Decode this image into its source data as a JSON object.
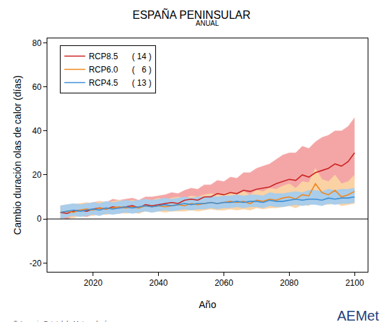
{
  "chart_data": {
    "type": "line",
    "title": "ESPAÑA PENINSULAR",
    "subtitle": "ANUAL",
    "x_label": "Año",
    "y_label": "Cambio duración olas de calor (días)",
    "source": "© Agencia Estatal de Meteorología",
    "logo": {
      "text": "AEMet",
      "subtitle": "Agencia Estatal de Meteorología"
    },
    "xlim": [
      2006,
      2104
    ],
    "ylim": [
      -24,
      82
    ],
    "xticks": [
      2020,
      2040,
      2060,
      2080,
      2100
    ],
    "yticks": [
      -20,
      0,
      20,
      40,
      60,
      80
    ],
    "hline": 0,
    "grid": false,
    "legend": "upper left",
    "x": [
      2010,
      2012,
      2014,
      2016,
      2018,
      2020,
      2022,
      2024,
      2026,
      2028,
      2030,
      2032,
      2034,
      2036,
      2038,
      2040,
      2042,
      2044,
      2046,
      2048,
      2050,
      2052,
      2054,
      2056,
      2058,
      2060,
      2062,
      2064,
      2066,
      2068,
      2070,
      2072,
      2074,
      2076,
      2078,
      2080,
      2082,
      2084,
      2086,
      2088,
      2090,
      2092,
      2094,
      2096,
      2098,
      2100
    ],
    "series": [
      {
        "name": "RCP8.5",
        "models_label": "( 14 )",
        "color": "#cc2222",
        "band_color": "#f4a6a6",
        "values": [
          3,
          2.5,
          3.5,
          4,
          3.5,
          4.5,
          5,
          4.5,
          5.5,
          5,
          5.5,
          6,
          5,
          6.5,
          6,
          6.5,
          7,
          7.5,
          7,
          8.5,
          9,
          8.5,
          10,
          10,
          11.5,
          11,
          12,
          11.5,
          13,
          12.5,
          13.5,
          14,
          14.5,
          16,
          17,
          18,
          17.5,
          20,
          19,
          21,
          22,
          23,
          25,
          24,
          26,
          30
        ],
        "lower": [
          0.5,
          0,
          1,
          1.5,
          1,
          2,
          2.5,
          2,
          3,
          2.5,
          3,
          3.5,
          2.5,
          4,
          3.5,
          4,
          4.5,
          5,
          4.5,
          5.5,
          6,
          5.5,
          6.5,
          6.5,
          7,
          7,
          7.5,
          7,
          8,
          7.5,
          8,
          8.5,
          9,
          10,
          10.5,
          11,
          10.5,
          12,
          11.5,
          13,
          13.5,
          14,
          15,
          15,
          16,
          18
        ],
        "upper": [
          6,
          5.5,
          6.5,
          7,
          6.5,
          7.5,
          8,
          7.5,
          9,
          8.5,
          9,
          9.5,
          8.5,
          10,
          10,
          10.5,
          11,
          12,
          11.5,
          13,
          14,
          13.5,
          15.5,
          15.5,
          17.5,
          17,
          19,
          18.5,
          21,
          21,
          23,
          24,
          25,
          27,
          29,
          30,
          30,
          33,
          32,
          35,
          37,
          38,
          40,
          40,
          42,
          46
        ]
      },
      {
        "name": "RCP6.0",
        "models_label": "(   6 )",
        "color": "#f0871e",
        "band_color": "#fbd2a4",
        "values": [
          3,
          3.5,
          3,
          4,
          4.5,
          4,
          5,
          4.5,
          5,
          5.5,
          5,
          5.5,
          5,
          6,
          5.5,
          6,
          5.5,
          6,
          6.5,
          6,
          7,
          6.5,
          7,
          7.5,
          7,
          7.5,
          8,
          7.5,
          8,
          7,
          8.5,
          8,
          9,
          8.5,
          9.5,
          10,
          9,
          11,
          10.5,
          16,
          12,
          11,
          13,
          10,
          11,
          12.5
        ],
        "lower": [
          0.5,
          1,
          0.5,
          1.5,
          2,
          1.5,
          2.5,
          2,
          2.5,
          3,
          2.5,
          3,
          2.5,
          3.5,
          3,
          3.5,
          3,
          3.5,
          3.5,
          3.5,
          4,
          3.5,
          4,
          4.5,
          4,
          4,
          4.5,
          4,
          4.5,
          4,
          5,
          4.5,
          5,
          5,
          5.5,
          6,
          5,
          6.5,
          6,
          9,
          7,
          6.5,
          7.5,
          6,
          6.5,
          7
        ],
        "upper": [
          6,
          6.5,
          6,
          7,
          7.5,
          7,
          8,
          7.5,
          8,
          8.5,
          8,
          8.5,
          8,
          9,
          8.5,
          9.5,
          8.5,
          9.5,
          10,
          9.5,
          10.5,
          10,
          11,
          11.5,
          11,
          11.5,
          12,
          11.5,
          12.5,
          11,
          13,
          12.5,
          14,
          13.5,
          15,
          16,
          14,
          17,
          16.5,
          23,
          18,
          17,
          20,
          16,
          17,
          20
        ]
      },
      {
        "name": "RCP4.5",
        "models_label": "( 13 )",
        "color": "#3d8fd6",
        "band_color": "#a9cdea",
        "values": [
          3,
          3.5,
          4,
          3.5,
          4,
          4.5,
          4,
          5,
          4.5,
          5,
          5.5,
          5,
          5.5,
          6,
          5.5,
          6,
          6.5,
          6,
          6.5,
          7,
          6.5,
          7,
          7,
          7.5,
          7,
          7.5,
          7.5,
          8,
          7.5,
          8,
          8,
          7.5,
          8.5,
          8,
          8,
          8.5,
          9,
          8.5,
          9,
          9,
          8.5,
          9.5,
          9,
          9.5,
          9.5,
          10
        ],
        "lower": [
          0,
          1,
          1.5,
          1,
          1.5,
          2,
          1.5,
          2.5,
          2,
          2.5,
          3,
          2.5,
          3,
          3.5,
          3,
          3.5,
          4,
          3.5,
          4,
          4.5,
          4,
          4.5,
          4.5,
          5,
          4.5,
          5,
          5,
          5.5,
          5,
          5.5,
          5.5,
          5,
          6,
          5.5,
          5.5,
          6,
          6.5,
          6,
          6.5,
          6.5,
          6,
          7,
          6.5,
          7,
          7,
          7.5
        ],
        "upper": [
          6,
          6.5,
          7,
          6.5,
          7,
          7.5,
          7,
          8,
          7.5,
          8,
          8.5,
          8,
          8.5,
          9,
          8.5,
          9,
          9.5,
          9,
          9.5,
          10,
          9.5,
          10,
          10,
          10.5,
          10,
          10.5,
          10.5,
          11,
          10.5,
          11,
          11,
          10.5,
          12,
          11.5,
          11.5,
          12,
          12.5,
          12,
          13,
          13,
          12.5,
          13.5,
          13,
          13.5,
          13.5,
          14
        ]
      }
    ]
  }
}
